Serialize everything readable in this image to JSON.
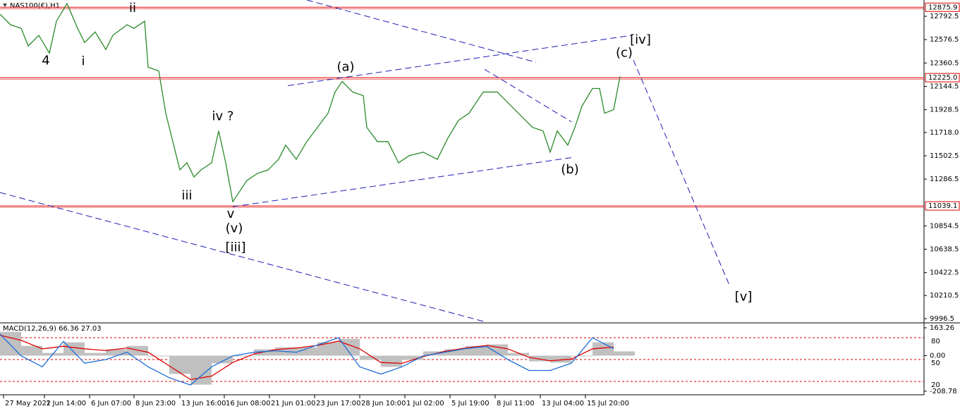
{
  "chart_data": [
    {
      "type": "line",
      "title": "NAS100(€),H1",
      "x": [
        0,
        1.5,
        3,
        4,
        5.5,
        7,
        8,
        9.5,
        11,
        12,
        13.5,
        15,
        16,
        18,
        19,
        20.5,
        21,
        22.5,
        23.5,
        24.5,
        25.5,
        26.5,
        27.5,
        28.5,
        30,
        31,
        32,
        33,
        34,
        35,
        36.5,
        38,
        39.5,
        40.5,
        42,
        43.5,
        45,
        46.5,
        47.5,
        48.5,
        50,
        51.5,
        52,
        53.5,
        55,
        56.5,
        58,
        60,
        62,
        63.5,
        65,
        66.5,
        68.5,
        70.5,
        72,
        74,
        75.5,
        77,
        78,
        79,
        80.5,
        81.5,
        82.5,
        84,
        85,
        85.7,
        87,
        87.9
      ],
      "series": [
        {
          "color": "#2b8a2b",
          "values": [
            12812,
            12714,
            12681,
            12518,
            12616,
            12452,
            12747,
            12910,
            12681,
            12550,
            12648,
            12485,
            12616,
            12714,
            12681,
            12747,
            12321,
            12288,
            11896,
            11634,
            11372,
            11438,
            11307,
            11372,
            11438,
            11732,
            11438,
            11078,
            11176,
            11274,
            11340,
            11372,
            11470,
            11601,
            11470,
            11634,
            11765,
            11896,
            12092,
            12190,
            12092,
            12059,
            11765,
            11634,
            11634,
            11438,
            11503,
            11536,
            11470,
            11667,
            11830,
            11896,
            12092,
            12092,
            11994,
            11863,
            11765,
            11732,
            11536,
            11732,
            11601,
            11765,
            11961,
            12125,
            12125,
            11896,
            11929,
            12236
          ]
        }
      ],
      "xlim": [
        0,
        131
      ],
      "ylim": [
        9964,
        12943
      ],
      "yticks": [
        12792.5,
        12576.5,
        12360.5,
        12144.5,
        11928.5,
        {
          "value": 11718,
          "label": "11718.0"
        },
        11502.5,
        11286.5,
        10854.5,
        10638.5,
        10422.5,
        10210.5,
        9996.5
      ],
      "xticks": [
        {
          "value": 0.5,
          "label": "27 May 2022"
        },
        {
          "value": 6.3,
          "label": "1 Jun 14:00"
        },
        {
          "value": 12.7,
          "label": "6 Jun 07:00"
        },
        {
          "value": 19,
          "label": "8 Jun 23:00"
        },
        {
          "value": 25.5,
          "label": "13 Jun 16:00"
        },
        {
          "value": 31.8,
          "label": "16 Jun 08:00"
        },
        {
          "value": 38.2,
          "label": "21 Jun 01:00"
        },
        {
          "value": 44.6,
          "label": "23 Jun 17:00"
        },
        {
          "value": 51,
          "label": "28 Jun 10:00"
        },
        {
          "value": 57.4,
          "label": "1 Jul 02:00"
        },
        {
          "value": 63.8,
          "label": "5 Jul 19:00"
        },
        {
          "value": 70.2,
          "label": "8 Jul 11:00"
        },
        {
          "value": 76.6,
          "label": "13 Jul 04:00"
        },
        {
          "value": 83,
          "label": "15 Jul 20:00"
        }
      ],
      "levels": [
        12875.9,
        {
          "value": 12225,
          "label": "12225.0"
        },
        11039.1
      ],
      "level_color": "#e00000",
      "trendline_color": "#1f1fb4",
      "trendlines": [
        {
          "x": [
            43.5,
            76
          ],
          "y": [
            12943,
            12367
          ]
        },
        {
          "x": [
            40.8,
            89.5
          ],
          "y": [
            12151,
            12616
          ]
        },
        {
          "x": [
            0,
            68.5
          ],
          "y": [
            11163,
            9972
          ]
        },
        {
          "x": [
            33,
            81.5
          ],
          "y": [
            11032,
            11490
          ]
        },
        {
          "x": [
            68.7,
            81
          ],
          "y": [
            12302,
            11817
          ]
        },
        {
          "x": [
            89.8,
            103.5
          ],
          "y": [
            12387,
            10292
          ]
        }
      ],
      "annotations": [
        {
          "text": "4",
          "x": 6.5,
          "y": 12380,
          "color": "#000000"
        },
        {
          "text": "i",
          "x": 11.8,
          "y": 12374,
          "color": "#e020e0"
        },
        {
          "text": "ii",
          "x": 18.8,
          "y": 12864,
          "color": "#e020e0"
        },
        {
          "text": "iii",
          "x": 26.5,
          "y": 11130,
          "color": "#e020e0"
        },
        {
          "text": "iv ?",
          "x": 31.6,
          "y": 11863,
          "color": "#e020e0"
        },
        {
          "text": "v",
          "x": 32.7,
          "y": 10960,
          "color": "#e020e0"
        },
        {
          "text": "(v)",
          "x": 33.2,
          "y": 10829,
          "color": "#1f1fb4"
        },
        {
          "text": "[iii]",
          "x": 33.4,
          "y": 10652,
          "color": "#2a8a1a"
        },
        {
          "text": "(a)",
          "x": 49,
          "y": 12321,
          "color": "#1f1fb4"
        },
        {
          "text": "(b)",
          "x": 80.8,
          "y": 11372,
          "color": "#1f1fb4"
        },
        {
          "text": "(c)",
          "x": 88.5,
          "y": 12452,
          "color": "#1f1fb4"
        },
        {
          "text": "[iv]",
          "x": 90.8,
          "y": 12570,
          "color": "#2a8a1a"
        },
        {
          "text": "[v]",
          "x": 105.4,
          "y": 10194,
          "color": "#2a8a1a"
        }
      ]
    },
    {
      "type": "bar",
      "title": "MACD(12,26,9) 66.36 27.03",
      "x": [
        0,
        3,
        6,
        9,
        12,
        15,
        18,
        21,
        24,
        27,
        30,
        33,
        36,
        39,
        42,
        45,
        48,
        51,
        54,
        57,
        60,
        63,
        66,
        69,
        72,
        75,
        78,
        81,
        84,
        87
      ],
      "series": [
        {
          "type": "bar",
          "color": "#c0c0c0",
          "values": [
            140,
            57,
            16,
            78,
            16,
            37,
            57,
            -4,
            -107,
            -170,
            -45,
            -4,
            37,
            49,
            49,
            78,
            98,
            -25,
            -66,
            -25,
            25,
            37,
            57,
            66,
            16,
            -33,
            -41,
            -4,
            78,
            25
          ]
        },
        {
          "type": "line",
          "color": "#e00000",
          "values": [
            120,
            90,
            40,
            55,
            40,
            30,
            45,
            20,
            -60,
            -140,
            -120,
            -40,
            10,
            35,
            45,
            60,
            85,
            40,
            -40,
            -45,
            -5,
            25,
            45,
            60,
            40,
            -10,
            -30,
            -20,
            40,
            50
          ]
        },
        {
          "type": "line",
          "color": "#1e6fd9",
          "axis": "y2",
          "values": [
            85,
            55,
            40,
            75,
            45,
            50,
            60,
            40,
            25,
            15,
            40,
            55,
            60,
            62,
            60,
            70,
            80,
            40,
            30,
            40,
            55,
            60,
            65,
            68,
            50,
            35,
            35,
            45,
            80,
            65
          ]
        }
      ],
      "ylim": [
        -208.78,
        163.26
      ],
      "yticks": [
        163.26,
        {
          "value": 0,
          "label": "0.00"
        },
        -208.78
      ],
      "y2lim": [
        6.4,
        93.6
      ],
      "y2ticks": [
        80,
        50,
        20
      ]
    }
  ]
}
